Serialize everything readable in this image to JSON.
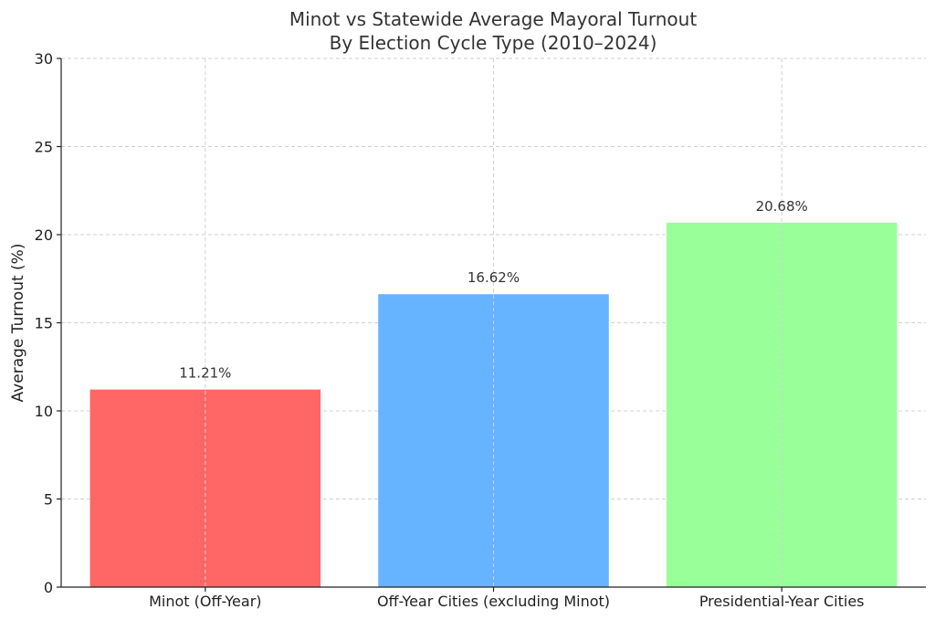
{
  "chart_data": {
    "type": "bar",
    "title": [
      "Minot vs Statewide Average Mayoral Turnout",
      "By Election Cycle Type (2010–2024)"
    ],
    "xlabel": "",
    "ylabel": "Average Turnout (%)",
    "ylim": [
      0,
      30
    ],
    "yticks": [
      "0",
      "5",
      "10",
      "15",
      "20",
      "25",
      "30"
    ],
    "categories": [
      "Minot (Off-Year)",
      "Off-Year Cities (excluding Minot)",
      "Presidential-Year Cities"
    ],
    "values": [
      11.21,
      16.62,
      20.68
    ],
    "value_labels": [
      "11.21%",
      "16.62%",
      "20.68%"
    ],
    "colors": [
      "#ff6666",
      "#66b3ff",
      "#99ff99"
    ],
    "grid": true,
    "legend": "none"
  }
}
